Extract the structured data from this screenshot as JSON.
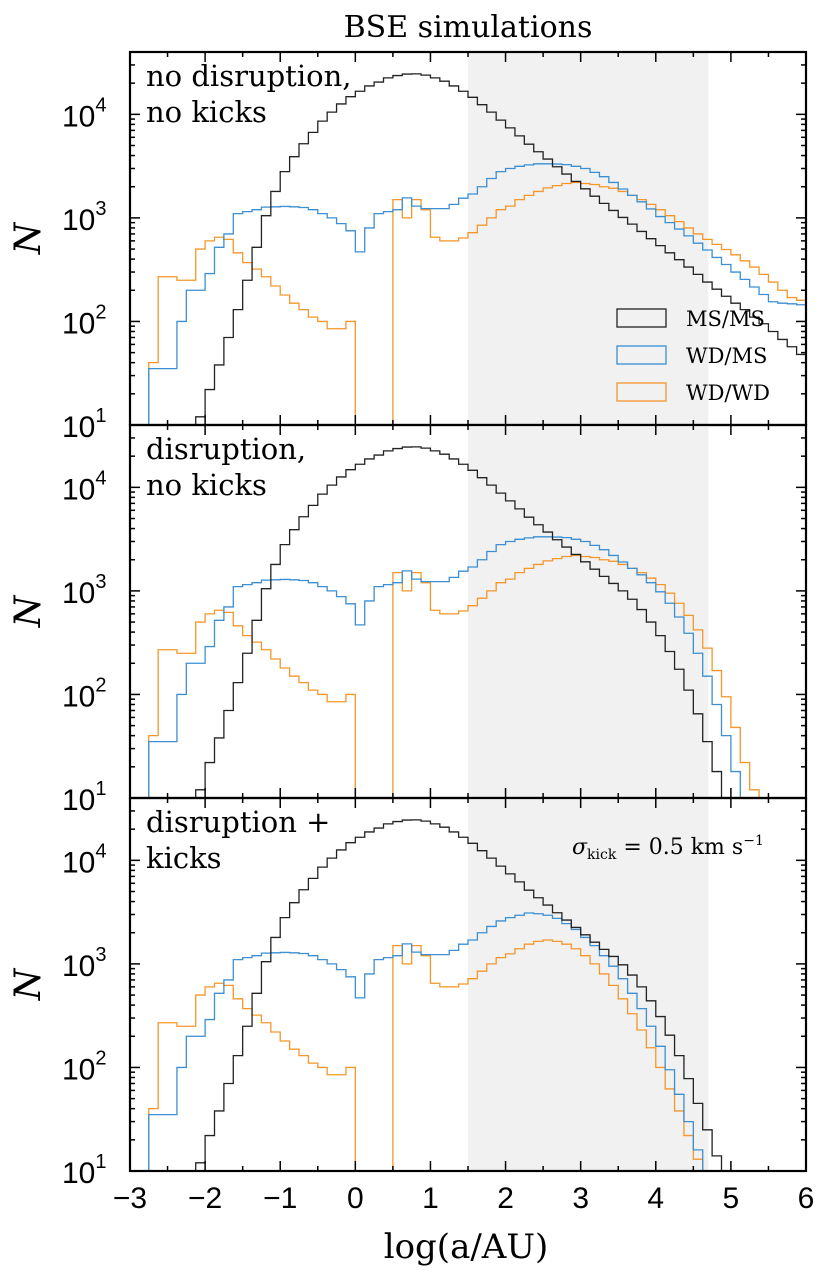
{
  "chart_data": {
    "type": "histogram-step",
    "title": "BSE simulations",
    "xlabel": "log(a/AU)",
    "ylabel": "N",
    "xlim": [
      -3,
      6
    ],
    "ylim": [
      10,
      40000
    ],
    "yscale": "log",
    "xticks": [
      "−3",
      "−2",
      "−1",
      "0",
      "1",
      "2",
      "3",
      "4",
      "5",
      "6"
    ],
    "yticks": [
      {
        "base": "10",
        "exp": "1"
      },
      {
        "base": "10",
        "exp": "2"
      },
      {
        "base": "10",
        "exp": "3"
      },
      {
        "base": "10",
        "exp": "4"
      }
    ],
    "shaded_region": [
      1.5,
      4.7
    ],
    "bin_start": -3.0,
    "bin_width": 0.125,
    "colors": {
      "MS/MS": "#222222",
      "WD/MS": "#3b8fd2",
      "WD/WD": "#f5962a",
      "shade": "#f1f1f1"
    },
    "legend": [
      "MS/MS",
      "WD/MS",
      "WD/WD"
    ],
    "panels": [
      {
        "label_lines": [
          "no disruption,",
          "no kicks"
        ],
        "annotation": "",
        "series": [
          {
            "name": "MS/MS",
            "values": [
              0,
              0,
              0,
              0,
              0,
              0,
              0,
              12,
              22,
              38,
              70,
              130,
              250,
              520,
              1050,
              1800,
              2800,
              3900,
              5200,
              6700,
              8600,
              10500,
              12600,
              14800,
              16700,
              18800,
              20500,
              22500,
              23700,
              24500,
              24600,
              23900,
              22500,
              20900,
              18800,
              16700,
              14600,
              12400,
              10500,
              8800,
              7400,
              6200,
              5150,
              4350,
              3700,
              3120,
              2650,
              2250,
              1910,
              1620,
              1380,
              1180,
              1010,
              870,
              740,
              630,
              540,
              460,
              395,
              335,
              285,
              240,
              205,
              175,
              150,
              130,
              110,
              95,
              80,
              67,
              57,
              48
            ]
          },
          {
            "name": "WD/MS",
            "values": [
              0,
              0,
              35,
              35,
              35,
              100,
              200,
              200,
              290,
              520,
              700,
              1100,
              1150,
              1200,
              1270,
              1280,
              1290,
              1280,
              1260,
              1200,
              1100,
              1000,
              880,
              750,
              470,
              800,
              1100,
              1150,
              1200,
              1560,
              1300,
              1230,
              1230,
              1230,
              1350,
              1550,
              1700,
              2000,
              2400,
              2800,
              3000,
              3150,
              3250,
              3330,
              3330,
              3310,
              3270,
              3150,
              3000,
              2750,
              2500,
              2200,
              1900,
              1650,
              1430,
              1220,
              1030,
              900,
              780,
              670,
              570,
              490,
              415,
              355,
              300,
              255,
              215,
              182,
              155,
              150,
              148,
              145
            ]
          },
          {
            "name": "WD/WD",
            "values": [
              0,
              0,
              40,
              270,
              270,
              250,
              250,
              500,
              600,
              650,
              620,
              460,
              370,
              320,
              270,
              220,
              180,
              150,
              130,
              110,
              100,
              85,
              85,
              100,
              0,
              0,
              0,
              0,
              1500,
              1000,
              1500,
              1200,
              650,
              600,
              600,
              640,
              720,
              850,
              1000,
              1200,
              1300,
              1500,
              1650,
              1800,
              1950,
              2050,
              2150,
              2200,
              2150,
              2100,
              2000,
              1930,
              1800,
              1650,
              1500,
              1350,
              1200,
              1050,
              920,
              800,
              700,
              620,
              555,
              495,
              440,
              385,
              335,
              285,
              240,
              200,
              170,
              160
            ]
          }
        ]
      },
      {
        "label_lines": [
          "disruption,",
          "no kicks"
        ],
        "annotation": "",
        "series": [
          {
            "name": "MS/MS",
            "values": [
              0,
              0,
              0,
              0,
              0,
              0,
              0,
              12,
              22,
              38,
              70,
              130,
              250,
              520,
              1050,
              1800,
              2800,
              3900,
              5200,
              6700,
              8600,
              10500,
              12600,
              14800,
              16700,
              18800,
              20500,
              22500,
              23700,
              24500,
              24600,
              23900,
              22500,
              20900,
              18800,
              16700,
              14600,
              12400,
              10500,
              8800,
              7400,
              6200,
              5150,
              4350,
              3700,
              3120,
              2650,
              2250,
              1910,
              1620,
              1380,
              1180,
              1000,
              830,
              660,
              500,
              370,
              260,
              175,
              110,
              65,
              35,
              18,
              10,
              0,
              0,
              0,
              0,
              0,
              0,
              0,
              0
            ]
          },
          {
            "name": "WD/MS",
            "values": [
              0,
              0,
              35,
              35,
              35,
              100,
              200,
              200,
              290,
              520,
              700,
              1100,
              1150,
              1200,
              1270,
              1280,
              1290,
              1280,
              1260,
              1200,
              1100,
              1000,
              880,
              750,
              470,
              800,
              1100,
              1150,
              1200,
              1560,
              1300,
              1230,
              1230,
              1230,
              1350,
              1550,
              1700,
              2000,
              2400,
              2800,
              3000,
              3150,
              3250,
              3330,
              3330,
              3310,
              3270,
              3150,
              3000,
              2750,
              2500,
              2200,
              1900,
              1650,
              1430,
              1200,
              980,
              760,
              560,
              390,
              250,
              150,
              80,
              40,
              18,
              10,
              0,
              0,
              0,
              0,
              0,
              0
            ]
          },
          {
            "name": "WD/WD",
            "values": [
              0,
              0,
              40,
              270,
              270,
              250,
              250,
              500,
              600,
              650,
              620,
              460,
              370,
              320,
              270,
              220,
              180,
              150,
              130,
              110,
              100,
              85,
              85,
              100,
              0,
              0,
              0,
              0,
              1500,
              1000,
              1500,
              1200,
              650,
              600,
              600,
              640,
              720,
              850,
              1000,
              1200,
              1300,
              1500,
              1650,
              1800,
              1950,
              2050,
              2150,
              2200,
              2150,
              2100,
              2000,
              1930,
              1800,
              1650,
              1500,
              1330,
              1150,
              950,
              760,
              580,
              420,
              280,
              170,
              95,
              48,
              22,
              12,
              0,
              0,
              0,
              0,
              0
            ]
          }
        ]
      },
      {
        "label_lines": [
          "disruption +",
          "kicks"
        ],
        "annotation": "σ_kick = 0.5 km s^−1",
        "series": [
          {
            "name": "MS/MS",
            "values": [
              0,
              0,
              0,
              0,
              0,
              0,
              0,
              12,
              22,
              38,
              70,
              130,
              250,
              520,
              1050,
              1800,
              2800,
              3900,
              5200,
              6700,
              8600,
              10500,
              12600,
              14800,
              16700,
              18800,
              20500,
              22500,
              23700,
              24500,
              24600,
              23900,
              22500,
              20900,
              18800,
              16700,
              14600,
              12400,
              10500,
              8800,
              7400,
              6200,
              5150,
              4350,
              3700,
              3120,
              2650,
              2250,
              1910,
              1620,
              1380,
              1180,
              980,
              780,
              600,
              440,
              310,
              205,
              130,
              78,
              45,
              25,
              14,
              0,
              0,
              0,
              0,
              0,
              0,
              0,
              0,
              0
            ]
          },
          {
            "name": "WD/MS",
            "values": [
              0,
              0,
              35,
              35,
              35,
              100,
              200,
              200,
              290,
              520,
              700,
              1100,
              1150,
              1200,
              1270,
              1280,
              1290,
              1280,
              1260,
              1200,
              1100,
              1000,
              880,
              750,
              470,
              800,
              1100,
              1150,
              1200,
              1560,
              1300,
              1230,
              1230,
              1230,
              1350,
              1550,
              1700,
              2000,
              2300,
              2600,
              2800,
              2950,
              3100,
              3050,
              2950,
              2750,
              2450,
              2150,
              1800,
              1500,
              1200,
              950,
              720,
              520,
              370,
              250,
              160,
              95,
              55,
              30,
              16,
              0,
              0,
              0,
              0,
              0,
              0,
              0,
              0,
              0,
              0,
              0
            ]
          },
          {
            "name": "WD/WD",
            "values": [
              0,
              0,
              40,
              270,
              270,
              250,
              250,
              500,
              600,
              650,
              620,
              460,
              370,
              320,
              270,
              220,
              180,
              150,
              130,
              110,
              100,
              85,
              85,
              100,
              0,
              0,
              0,
              0,
              1500,
              1000,
              1500,
              1200,
              650,
              600,
              600,
              640,
              720,
              850,
              1000,
              1150,
              1250,
              1400,
              1550,
              1650,
              1700,
              1650,
              1550,
              1400,
              1200,
              1000,
              800,
              620,
              460,
              330,
              230,
              155,
              100,
              62,
              38,
              22,
              13,
              0,
              0,
              0,
              0,
              0,
              0,
              0,
              0,
              0,
              0,
              0
            ]
          }
        ]
      }
    ]
  }
}
